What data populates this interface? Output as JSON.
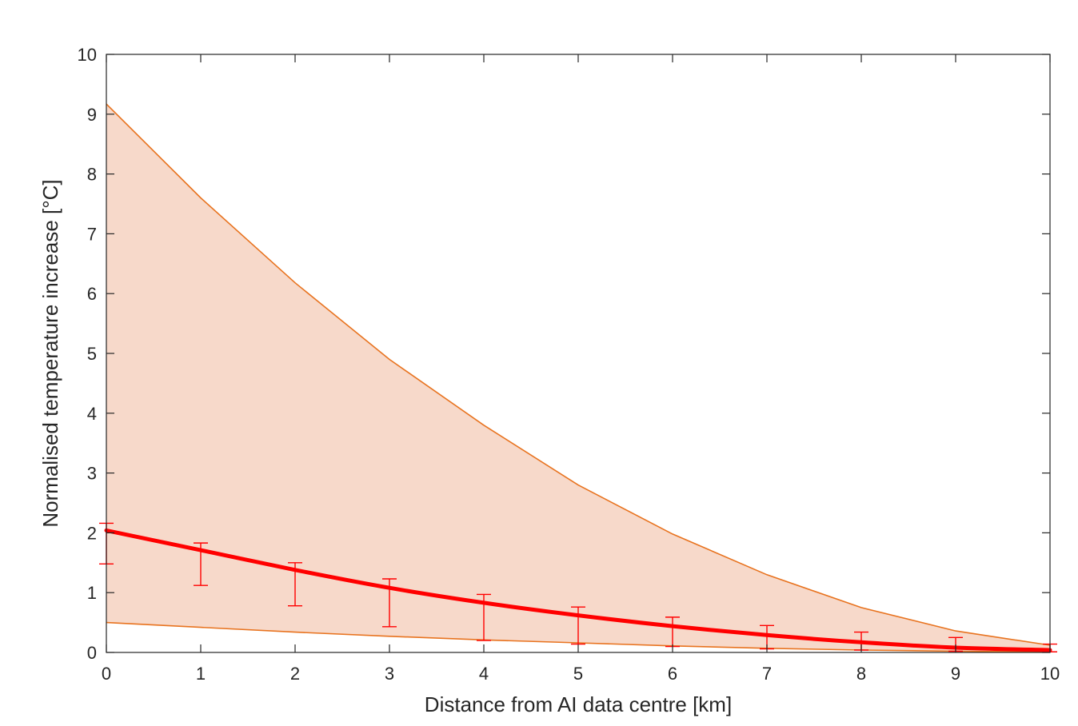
{
  "chart_data": {
    "type": "line",
    "title": "",
    "xlabel": "Distance from AI data centre [km]",
    "ylabel": "Normalised temperature increase [°C]",
    "xlim": [
      0,
      10
    ],
    "ylim": [
      0,
      10
    ],
    "xticks": [
      "0",
      "1",
      "2",
      "3",
      "4",
      "5",
      "6",
      "7",
      "8",
      "9",
      "10"
    ],
    "yticks": [
      "0",
      "1",
      "2",
      "3",
      "4",
      "5",
      "6",
      "7",
      "8",
      "9",
      "10"
    ],
    "grid": false,
    "x": [
      0,
      1,
      2,
      3,
      4,
      5,
      6,
      7,
      8,
      9,
      10
    ],
    "band": {
      "upper": [
        9.17,
        7.6,
        6.18,
        4.9,
        3.8,
        2.8,
        1.98,
        1.3,
        0.75,
        0.36,
        0.12
      ],
      "lower": [
        0.5,
        0.42,
        0.34,
        0.27,
        0.21,
        0.16,
        0.11,
        0.07,
        0.04,
        0.02,
        0.01
      ],
      "fill_color": "#f7d9ca",
      "edge_color": "#e8731f"
    },
    "series": [
      {
        "values": [
          2.04,
          1.71,
          1.38,
          1.08,
          0.83,
          0.62,
          0.44,
          0.29,
          0.17,
          0.08,
          0.04
        ],
        "err_upper": [
          2.16,
          1.83,
          1.5,
          1.23,
          0.97,
          0.76,
          0.59,
          0.45,
          0.34,
          0.25,
          0.14
        ],
        "err_lower": [
          1.48,
          1.12,
          0.78,
          0.43,
          0.2,
          0.14,
          0.1,
          0.06,
          0.04,
          0.02,
          0.01
        ],
        "color": "#ff0000"
      }
    ]
  }
}
